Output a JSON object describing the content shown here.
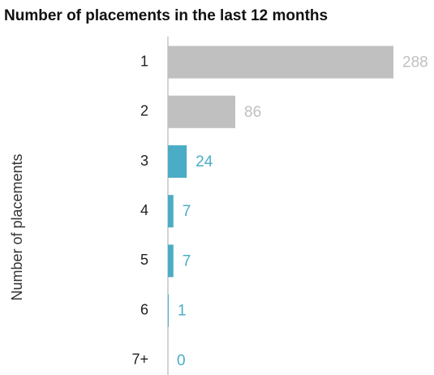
{
  "chart_data": {
    "type": "bar",
    "orientation": "horizontal",
    "title": "Number of placements in the last 12 months",
    "y_label": "Number of placements",
    "categories": [
      "1",
      "2",
      "3",
      "4",
      "5",
      "6",
      "7+"
    ],
    "values": [
      288,
      86,
      24,
      7,
      7,
      1,
      0
    ],
    "colors": [
      "#c0c0c0",
      "#c0c0c0",
      "#4bacc6",
      "#4bacc6",
      "#4bacc6",
      "#4bacc6",
      "#4bacc6"
    ]
  }
}
